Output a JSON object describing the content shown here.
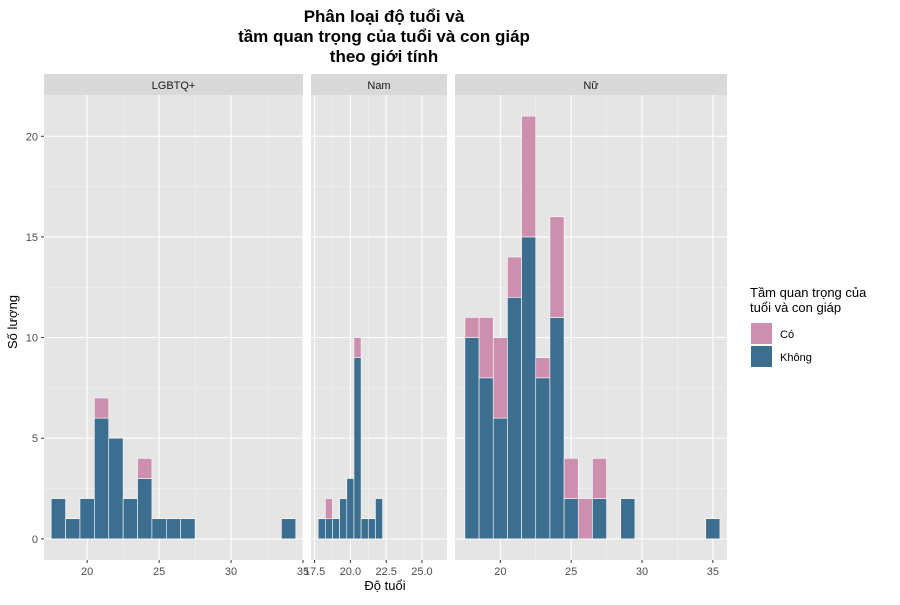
{
  "chart_data": {
    "type": "bar",
    "stacked": true,
    "title_lines": [
      "Phân loại độ tuổi và",
      "tầm quan trọng của tuổi và con giáp",
      "theo giới tính"
    ],
    "xlabel": "Độ tuổi",
    "ylabel": "Số lượng",
    "ylim": [
      0,
      21
    ],
    "y_ticks": [
      0,
      5,
      10,
      15,
      20
    ],
    "grid": true,
    "legend": {
      "title_lines": [
        "Tầm quan trọng của",
        "tuổi và con giáp"
      ],
      "position": "right",
      "entries": [
        {
          "label": "Có",
          "color": "#cc8fad"
        },
        {
          "label": "Không",
          "color": "#3b6e8f"
        }
      ]
    },
    "colors": {
      "co": "#cc8fad",
      "khong": "#3b6e8f",
      "panel_bg": "#e5e5e5",
      "strip_bg": "#d9d9d9"
    },
    "facets": [
      {
        "name": "LGBTQ+",
        "xlim": [
          17,
          35
        ],
        "x_ticks": [
          20,
          25,
          30,
          35
        ],
        "x_tick_labels": [
          "20",
          "25",
          "30",
          "35"
        ],
        "bin_width": 1,
        "bins": [
          {
            "x": 18,
            "khong": 2,
            "co": 0
          },
          {
            "x": 19,
            "khong": 1,
            "co": 0
          },
          {
            "x": 20,
            "khong": 2,
            "co": 0
          },
          {
            "x": 21,
            "khong": 6,
            "co": 1
          },
          {
            "x": 22,
            "khong": 5,
            "co": 0
          },
          {
            "x": 23,
            "khong": 2,
            "co": 0
          },
          {
            "x": 24,
            "khong": 3,
            "co": 1
          },
          {
            "x": 25,
            "khong": 1,
            "co": 0
          },
          {
            "x": 26,
            "khong": 1,
            "co": 0
          },
          {
            "x": 27,
            "khong": 1,
            "co": 0
          },
          {
            "x": 34,
            "khong": 1,
            "co": 0
          }
        ]
      },
      {
        "name": "Nam",
        "xlim": [
          17.25,
          26.75
        ],
        "x_ticks": [
          17.5,
          20.0,
          22.5,
          25.0
        ],
        "x_tick_labels": [
          "17.5",
          "20.0",
          "22.5",
          "25.0"
        ],
        "bin_width": 0.5,
        "bins": [
          {
            "x": 18,
            "khong": 1,
            "co": 0
          },
          {
            "x": 18.5,
            "khong": 1,
            "co": 1
          },
          {
            "x": 19,
            "khong": 1,
            "co": 0
          },
          {
            "x": 19.5,
            "khong": 2,
            "co": 0
          },
          {
            "x": 20,
            "khong": 3,
            "co": 0
          },
          {
            "x": 20.5,
            "khong": 9,
            "co": 1
          },
          {
            "x": 21,
            "khong": 1,
            "co": 0
          },
          {
            "x": 21.5,
            "khong": 1,
            "co": 0
          },
          {
            "x": 22,
            "khong": 2,
            "co": 0
          }
        ]
      },
      {
        "name": "Nữ",
        "xlim": [
          16.8,
          36.0
        ],
        "x_ticks": [
          20,
          25,
          30,
          35
        ],
        "x_tick_labels": [
          "20",
          "25",
          "30",
          "35"
        ],
        "bin_width": 1,
        "bins": [
          {
            "x": 18,
            "khong": 10,
            "co": 1
          },
          {
            "x": 19,
            "khong": 8,
            "co": 3
          },
          {
            "x": 20,
            "khong": 6,
            "co": 4
          },
          {
            "x": 21,
            "khong": 12,
            "co": 2
          },
          {
            "x": 22,
            "khong": 15,
            "co": 6
          },
          {
            "x": 23,
            "khong": 8,
            "co": 1
          },
          {
            "x": 24,
            "khong": 11,
            "co": 5
          },
          {
            "x": 25,
            "khong": 2,
            "co": 2
          },
          {
            "x": 26,
            "khong": 0,
            "co": 2
          },
          {
            "x": 27,
            "khong": 2,
            "co": 2
          },
          {
            "x": 29,
            "khong": 2,
            "co": 0
          },
          {
            "x": 35,
            "khong": 1,
            "co": 0
          }
        ]
      }
    ]
  }
}
